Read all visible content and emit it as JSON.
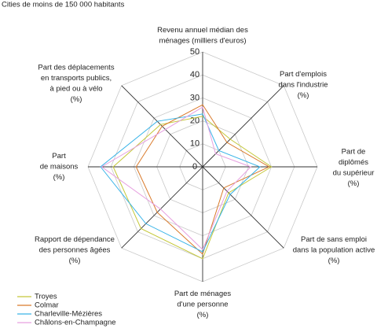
{
  "chart_data": {
    "type": "radar",
    "title": "Cities de moins de 150 000 habitants",
    "axes": [
      [
        "Revenu annuel médian des",
        "ménages (milliers d'euros)"
      ],
      [
        "Part d'emplois",
        "dans l'industrie",
        "(%)"
      ],
      [
        "Part de",
        "diplômés",
        "du supérieur",
        "(%)"
      ],
      [
        "Part de sans emploi",
        "dans la population active",
        "(%)"
      ],
      [
        "Part de ménages",
        "d'une personne",
        "(%)"
      ],
      [
        "Rapport de dépendance",
        "des personnes âgées",
        "(%)"
      ],
      [
        "Part",
        "de maisons",
        "(%)"
      ],
      [
        "Part des déplacements",
        "en transports publics,",
        "à pied ou à vélo",
        "(%)"
      ]
    ],
    "rlim": [
      0,
      50
    ],
    "rticks": [
      0,
      10,
      20,
      30,
      40,
      50
    ],
    "grid": true,
    "legend": "lower left",
    "series": [
      {
        "name": "Troyes",
        "color": "#c5c83a",
        "values": [
          22,
          17,
          30,
          16,
          40,
          38,
          39,
          26
        ]
      },
      {
        "name": "Colmar",
        "color": "#d97a2b",
        "values": [
          27,
          15,
          29,
          13,
          38,
          28,
          29,
          25
        ]
      },
      {
        "name": "Charleville-Mézières",
        "color": "#3ab4e8",
        "values": [
          23,
          10,
          25,
          17,
          37,
          35,
          44.5,
          28
        ]
      },
      {
        "name": "Châlons-en-Champagne",
        "color": "#e6a0e0",
        "values": [
          26,
          8,
          21,
          15,
          36,
          26,
          44,
          23
        ]
      }
    ]
  }
}
